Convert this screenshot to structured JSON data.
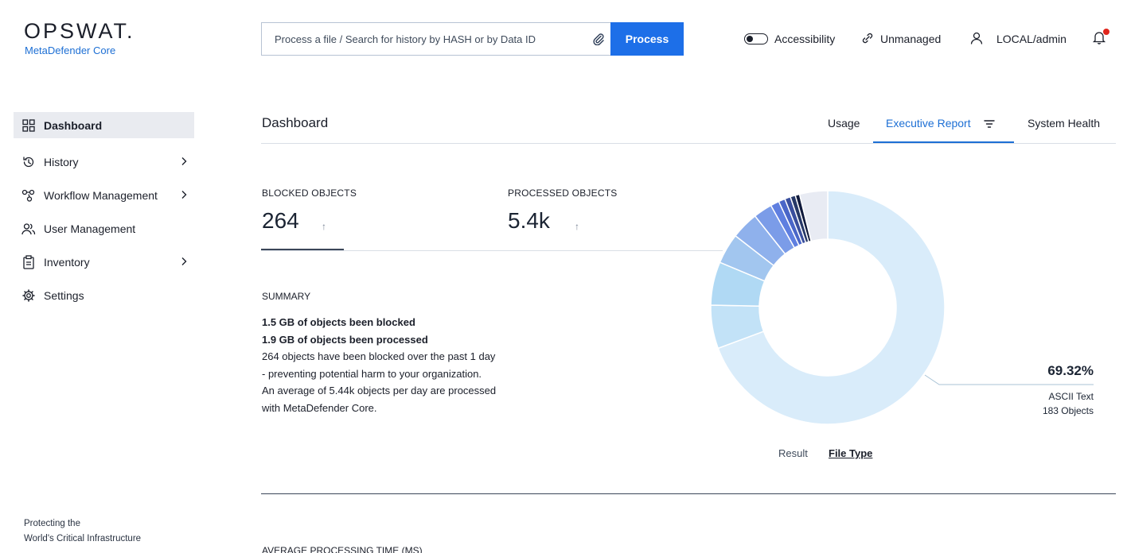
{
  "brand": {
    "name": "OPSWAT.",
    "product": "MetaDefender Core"
  },
  "search": {
    "placeholder": "Process a file / Search for history by HASH or by Data ID",
    "button": "Process"
  },
  "header": {
    "accessibility": "Accessibility",
    "unmanaged": "Unmanaged",
    "user": "LOCAL/admin",
    "has_notification": true
  },
  "sidebar": {
    "items": [
      {
        "label": "Dashboard",
        "icon": "grid-icon",
        "active": true,
        "has_children": false
      },
      {
        "label": "History",
        "icon": "history-icon",
        "active": false,
        "has_children": true
      },
      {
        "label": "Workflow Management",
        "icon": "workflow-icon",
        "active": false,
        "has_children": true
      },
      {
        "label": "User Management",
        "icon": "users-icon",
        "active": false,
        "has_children": false
      },
      {
        "label": "Inventory",
        "icon": "clipboard-icon",
        "active": false,
        "has_children": true
      },
      {
        "label": "Settings",
        "icon": "gear-icon",
        "active": false,
        "has_children": false
      }
    ],
    "footer_line1": "Protecting the",
    "footer_line2": "World's Critical Infrastructure"
  },
  "page": {
    "title": "Dashboard",
    "tabs": [
      {
        "label": "Usage",
        "active": false
      },
      {
        "label": "Executive Report",
        "active": true
      },
      {
        "label": "System Health",
        "active": false
      }
    ]
  },
  "stats": {
    "blocked_label": "BLOCKED OBJECTS",
    "blocked_value": "264",
    "processed_label": "PROCESSED OBJECTS",
    "processed_value": "5.4k",
    "arrow": "↑"
  },
  "summary": {
    "title": "SUMMARY",
    "line1": "1.5 GB of objects been blocked",
    "line2": "1.9 GB of objects been processed",
    "line3": "264 objects have been blocked over the past 1 day",
    "line4": "- preventing potential harm to your organization.",
    "line5": "An average of 5.44k objects per day are processed",
    "line6": "with MetaDefender Core."
  },
  "chart": {
    "highlight_pct": "69.32%",
    "highlight_label": "ASCII Text",
    "highlight_count": "183 Objects",
    "toggle_result": "Result",
    "toggle_filetype": "File Type"
  },
  "chart_data": {
    "type": "pie",
    "categories": [
      "ASCII Text",
      "",
      "",
      "",
      "",
      "",
      "",
      "",
      "",
      "",
      "",
      ""
    ],
    "values": [
      69.32,
      6.0,
      6.0,
      4.2,
      3.8,
      2.6,
      1.2,
      0.9,
      0.8,
      0.7,
      0.6,
      3.88
    ],
    "colors": [
      "#d9ecfa",
      "#c2e2f7",
      "#b0d9f4",
      "#a2c6ef",
      "#8fb1ec",
      "#7b9ce8",
      "#5f7fe0",
      "#4a66c8",
      "#3a4f9e",
      "#263867",
      "#101a3c",
      "#e8ebf3"
    ]
  },
  "footer_section": {
    "title": "AVERAGE PROCESSING TIME (MS)"
  }
}
